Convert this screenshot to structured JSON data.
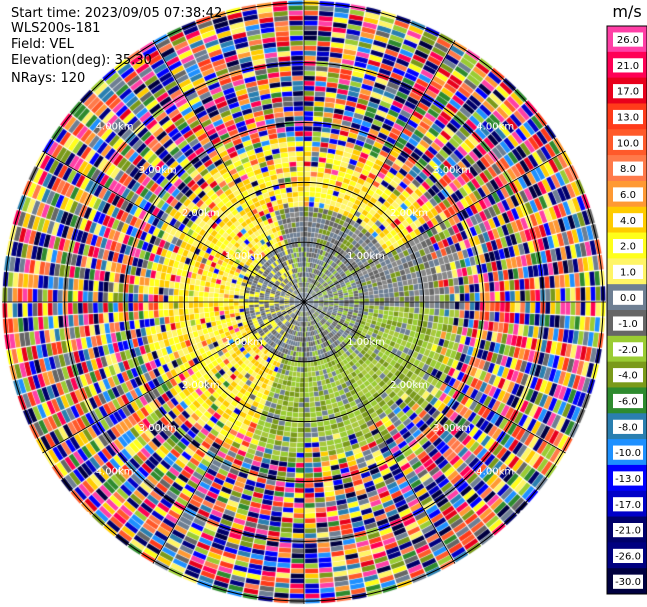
{
  "header": {
    "start_time_label": "Start time:",
    "start_time": "2023/09/05 07:38:42",
    "instrument": "WLS200s-181",
    "field_label": "Field:",
    "field": "VEL",
    "elevation_label": "Elevation(deg):",
    "elevation": "35.30",
    "nrays_label": "NRays:",
    "nrays": "120"
  },
  "chart_data": {
    "type": "heatmap",
    "projection": "polar PPI",
    "field": "VEL",
    "rays": 120,
    "range_rings_km": [
      1.0,
      2.0,
      3.0,
      4.0,
      5.0
    ],
    "ring_labels": [
      "1.00km",
      "2.00km",
      "3.00km",
      "4.00km",
      "5.00km"
    ],
    "colorbar": {
      "unit": "m/s",
      "ticks": [
        "26.0",
        "21.0",
        "17.0",
        "13.0",
        "10.0",
        "8.0",
        "6.0",
        "4.0",
        "2.0",
        "1.0",
        "0.0",
        "-1.0",
        "-2.0",
        "-4.0",
        "-6.0",
        "-8.0",
        "-10.0",
        "-13.0",
        "-17.0",
        "-21.0",
        "-26.0",
        "-30.0"
      ],
      "colors": [
        "#ff3fa6",
        "#ff0055",
        "#e8001c",
        "#ff3b1a",
        "#ff5a2a",
        "#ff7a4a",
        "#ff9933",
        "#ffcc00",
        "#ffff1a",
        "#fff566",
        "#6e7f93",
        "#666666",
        "#9acc33",
        "#7a9a1a",
        "#2e8b2e",
        "#2a7fb0",
        "#1e90ff",
        "#0000ff",
        "#0000c8",
        "#00006a",
        "#000080",
        "#000040"
      ]
    },
    "description": "Radial velocity; near-range ~0 to +2 m/s (yellow, gray, green), far-range noise across full scale"
  }
}
